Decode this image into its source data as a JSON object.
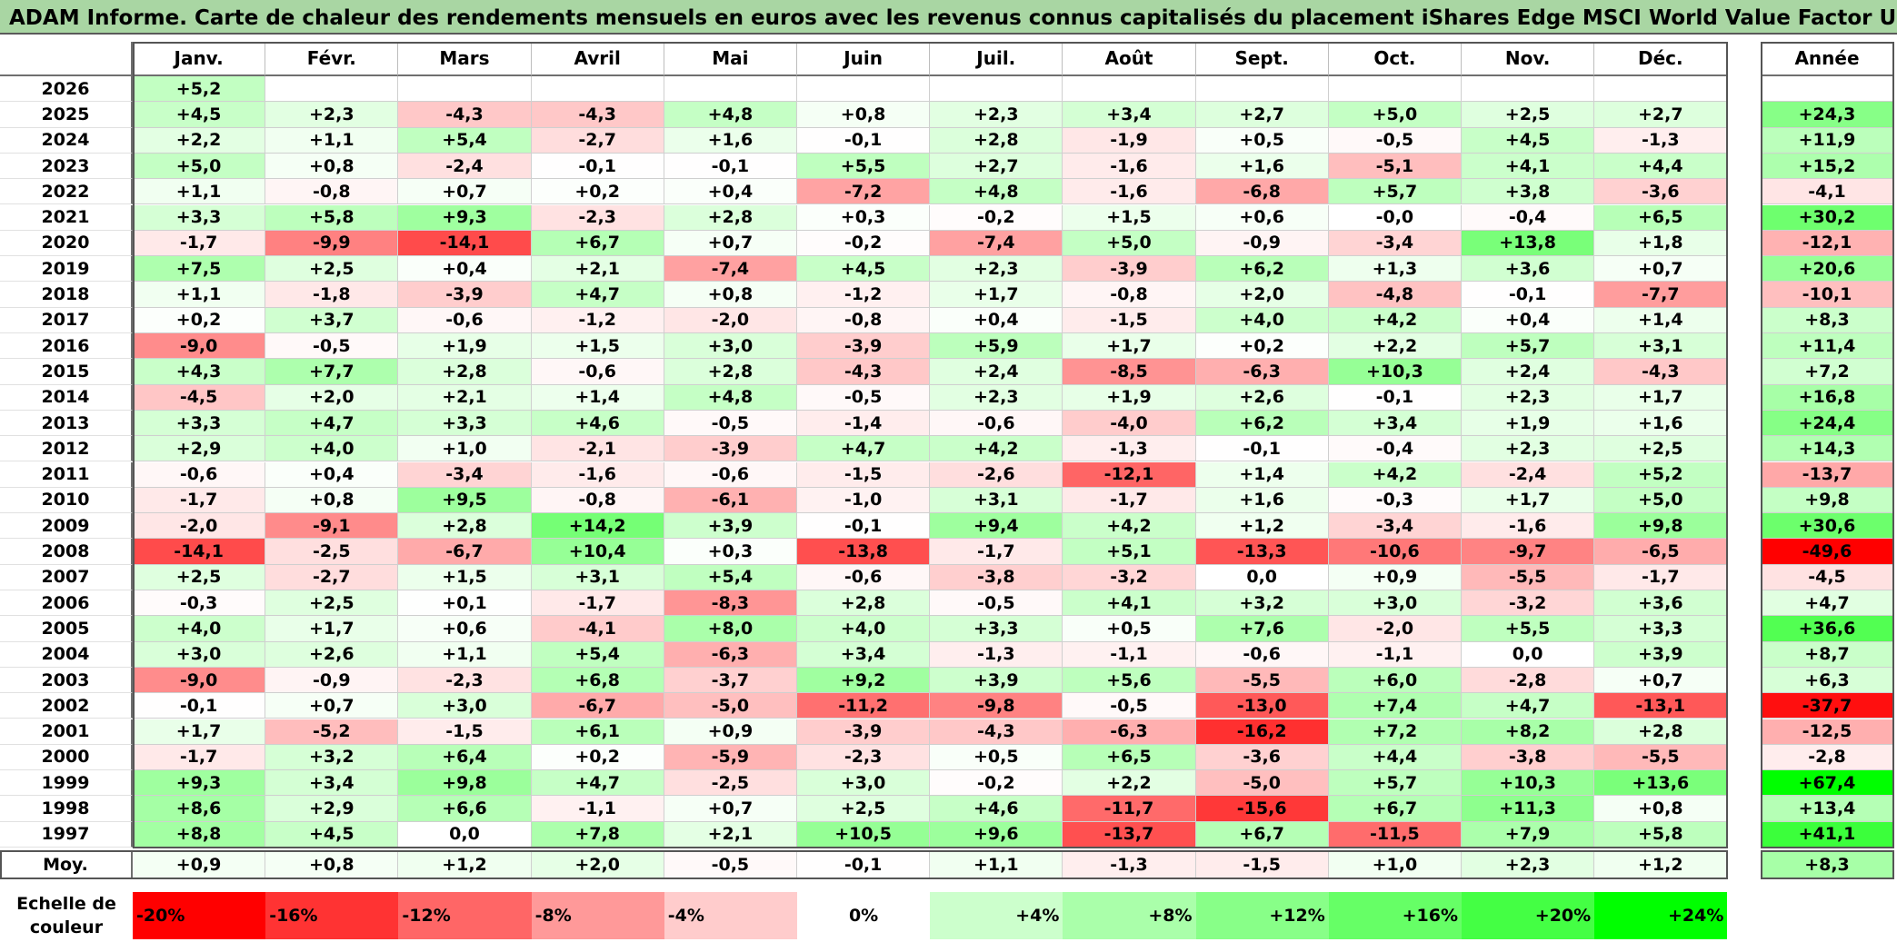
{
  "title": "ADAM Informe. Carte de chaleur des rendements mensuels en euros avec les revenus connus capitalisés du placement iShares Edge MSCI World Value Factor UCITS ETF USD",
  "chart_data": {
    "type": "heatmap",
    "title": "ADAM Informe. Carte de chaleur des rendements mensuels en euros avec les revenus connus capitalisés du placement iShares Edge MSCI World Value Factor UCITS ETF USD",
    "months": [
      "Janv.",
      "Févr.",
      "Mars",
      "Avril",
      "Mai",
      "Juin",
      "Juil.",
      "Août",
      "Sept.",
      "Oct.",
      "Nov.",
      "Déc."
    ],
    "year_header": "Année",
    "rows": [
      {
        "year": "2026",
        "values": [
          "+5,2",
          "",
          "",
          "",
          "",
          "",
          "",
          "",
          "",
          "",
          "",
          ""
        ],
        "annual": ""
      },
      {
        "year": "2025",
        "values": [
          "+4,5",
          "+2,3",
          "-4,3",
          "-4,3",
          "+4,8",
          "+0,8",
          "+2,3",
          "+3,4",
          "+2,7",
          "+5,0",
          "+2,5",
          "+2,7"
        ],
        "annual": "+24,3"
      },
      {
        "year": "2024",
        "values": [
          "+2,2",
          "+1,1",
          "+5,4",
          "-2,7",
          "+1,6",
          "-0,1",
          "+2,8",
          "-1,9",
          "+0,5",
          "-0,5",
          "+4,5",
          "-1,3"
        ],
        "annual": "+11,9"
      },
      {
        "year": "2023",
        "values": [
          "+5,0",
          "+0,8",
          "-2,4",
          "-0,1",
          "-0,1",
          "+5,5",
          "+2,7",
          "-1,6",
          "+1,6",
          "-5,1",
          "+4,1",
          "+4,4"
        ],
        "annual": "+15,2"
      },
      {
        "year": "2022",
        "values": [
          "+1,1",
          "-0,8",
          "+0,7",
          "+0,2",
          "+0,4",
          "-7,2",
          "+4,8",
          "-1,6",
          "-6,8",
          "+5,7",
          "+3,8",
          "-3,6"
        ],
        "annual": "-4,1"
      },
      {
        "year": "2021",
        "values": [
          "+3,3",
          "+5,8",
          "+9,3",
          "-2,3",
          "+2,8",
          "+0,3",
          "-0,2",
          "+1,5",
          "+0,6",
          "-0,0",
          "-0,4",
          "+6,5"
        ],
        "annual": "+30,2"
      },
      {
        "year": "2020",
        "values": [
          "-1,7",
          "-9,9",
          "-14,1",
          "+6,7",
          "+0,7",
          "-0,2",
          "-7,4",
          "+5,0",
          "-0,9",
          "-3,4",
          "+13,8",
          "+1,8"
        ],
        "annual": "-12,1"
      },
      {
        "year": "2019",
        "values": [
          "+7,5",
          "+2,5",
          "+0,4",
          "+2,1",
          "-7,4",
          "+4,5",
          "+2,3",
          "-3,9",
          "+6,2",
          "+1,3",
          "+3,6",
          "+0,7"
        ],
        "annual": "+20,6"
      },
      {
        "year": "2018",
        "values": [
          "+1,1",
          "-1,8",
          "-3,9",
          "+4,7",
          "+0,8",
          "-1,2",
          "+1,7",
          "-0,8",
          "+2,0",
          "-4,8",
          "-0,1",
          "-7,7"
        ],
        "annual": "-10,1"
      },
      {
        "year": "2017",
        "values": [
          "+0,2",
          "+3,7",
          "-0,6",
          "-1,2",
          "-2,0",
          "-0,8",
          "+0,4",
          "-1,5",
          "+4,0",
          "+4,2",
          "+0,4",
          "+1,4"
        ],
        "annual": "+8,3"
      },
      {
        "year": "2016",
        "values": [
          "-9,0",
          "-0,5",
          "+1,9",
          "+1,5",
          "+3,0",
          "-3,9",
          "+5,9",
          "+1,7",
          "+0,2",
          "+2,2",
          "+5,7",
          "+3,1"
        ],
        "annual": "+11,4"
      },
      {
        "year": "2015",
        "values": [
          "+4,3",
          "+7,7",
          "+2,8",
          "-0,6",
          "+2,8",
          "-4,3",
          "+2,4",
          "-8,5",
          "-6,3",
          "+10,3",
          "+2,4",
          "-4,3"
        ],
        "annual": "+7,2"
      },
      {
        "year": "2014",
        "values": [
          "-4,5",
          "+2,0",
          "+2,1",
          "+1,4",
          "+4,8",
          "-0,5",
          "+2,3",
          "+1,9",
          "+2,6",
          "-0,1",
          "+2,3",
          "+1,7"
        ],
        "annual": "+16,8"
      },
      {
        "year": "2013",
        "values": [
          "+3,3",
          "+4,7",
          "+3,3",
          "+4,6",
          "-0,5",
          "-1,4",
          "-0,6",
          "-4,0",
          "+6,2",
          "+3,4",
          "+1,9",
          "+1,6"
        ],
        "annual": "+24,4"
      },
      {
        "year": "2012",
        "values": [
          "+2,9",
          "+4,0",
          "+1,0",
          "-2,1",
          "-3,9",
          "+4,7",
          "+4,2",
          "-1,3",
          "-0,1",
          "-0,4",
          "+2,3",
          "+2,5"
        ],
        "annual": "+14,3"
      },
      {
        "year": "2011",
        "values": [
          "-0,6",
          "+0,4",
          "-3,4",
          "-1,6",
          "-0,6",
          "-1,5",
          "-2,6",
          "-12,1",
          "+1,4",
          "+4,2",
          "-2,4",
          "+5,2"
        ],
        "annual": "-13,7"
      },
      {
        "year": "2010",
        "values": [
          "-1,7",
          "+0,8",
          "+9,5",
          "-0,8",
          "-6,1",
          "-1,0",
          "+3,1",
          "-1,7",
          "+1,6",
          "-0,3",
          "+1,7",
          "+5,0"
        ],
        "annual": "+9,8"
      },
      {
        "year": "2009",
        "values": [
          "-2,0",
          "-9,1",
          "+2,8",
          "+14,2",
          "+3,9",
          "-0,1",
          "+9,4",
          "+4,2",
          "+1,2",
          "-3,4",
          "-1,6",
          "+9,8"
        ],
        "annual": "+30,6"
      },
      {
        "year": "2008",
        "values": [
          "-14,1",
          "-2,5",
          "-6,7",
          "+10,4",
          "+0,3",
          "-13,8",
          "-1,7",
          "+5,1",
          "-13,3",
          "-10,6",
          "-9,7",
          "-6,5"
        ],
        "annual": "-49,6"
      },
      {
        "year": "2007",
        "values": [
          "+2,5",
          "-2,7",
          "+1,5",
          "+3,1",
          "+5,4",
          "-0,6",
          "-3,8",
          "-3,2",
          "0,0",
          "+0,9",
          "-5,5",
          "-1,7"
        ],
        "annual": "-4,5"
      },
      {
        "year": "2006",
        "values": [
          "-0,3",
          "+2,5",
          "+0,1",
          "-1,7",
          "-8,3",
          "+2,8",
          "-0,5",
          "+4,1",
          "+3,2",
          "+3,0",
          "-3,2",
          "+3,6"
        ],
        "annual": "+4,7"
      },
      {
        "year": "2005",
        "values": [
          "+4,0",
          "+1,7",
          "+0,6",
          "-4,1",
          "+8,0",
          "+4,0",
          "+3,3",
          "+0,5",
          "+7,6",
          "-2,0",
          "+5,5",
          "+3,3"
        ],
        "annual": "+36,6"
      },
      {
        "year": "2004",
        "values": [
          "+3,0",
          "+2,6",
          "+1,1",
          "+5,4",
          "-6,3",
          "+3,4",
          "-1,3",
          "-1,1",
          "-0,6",
          "-1,1",
          "0,0",
          "+3,9"
        ],
        "annual": "+8,7"
      },
      {
        "year": "2003",
        "values": [
          "-9,0",
          "-0,9",
          "-2,3",
          "+6,8",
          "-3,7",
          "+9,2",
          "+3,9",
          "+5,6",
          "-5,5",
          "+6,0",
          "-2,8",
          "+0,7"
        ],
        "annual": "+6,3"
      },
      {
        "year": "2002",
        "values": [
          "-0,1",
          "+0,7",
          "+3,0",
          "-6,7",
          "-5,0",
          "-11,2",
          "-9,8",
          "-0,5",
          "-13,0",
          "+7,4",
          "+4,7",
          "-13,1"
        ],
        "annual": "-37,7"
      },
      {
        "year": "2001",
        "values": [
          "+1,7",
          "-5,2",
          "-1,5",
          "+6,1",
          "+0,9",
          "-3,9",
          "-4,3",
          "-6,3",
          "-16,2",
          "+7,2",
          "+8,2",
          "+2,8"
        ],
        "annual": "-12,5"
      },
      {
        "year": "2000",
        "values": [
          "-1,7",
          "+3,2",
          "+6,4",
          "+0,2",
          "-5,9",
          "-2,3",
          "+0,5",
          "+6,5",
          "-3,6",
          "+4,4",
          "-3,8",
          "-5,5"
        ],
        "annual": "-2,8"
      },
      {
        "year": "1999",
        "values": [
          "+9,3",
          "+3,4",
          "+9,8",
          "+4,7",
          "-2,5",
          "+3,0",
          "-0,2",
          "+2,2",
          "-5,0",
          "+5,7",
          "+10,3",
          "+13,6"
        ],
        "annual": "+67,4"
      },
      {
        "year": "1998",
        "values": [
          "+8,6",
          "+2,9",
          "+6,6",
          "-1,1",
          "+0,7",
          "+2,5",
          "+4,6",
          "-11,7",
          "-15,6",
          "+6,7",
          "+11,3",
          "+0,8"
        ],
        "annual": "+13,4"
      },
      {
        "year": "1997",
        "values": [
          "+8,8",
          "+4,5",
          "0,0",
          "+7,8",
          "+2,1",
          "+10,5",
          "+9,6",
          "-13,7",
          "+6,7",
          "-11,5",
          "+7,9",
          "+5,8"
        ],
        "annual": "+41,1"
      }
    ],
    "average": {
      "label": "Moy.",
      "values": [
        "+0,9",
        "+0,8",
        "+1,2",
        "+2,0",
        "-0,5",
        "-0,1",
        "+1,1",
        "-1,3",
        "-1,5",
        "+1,0",
        "+2,3",
        "+1,2"
      ],
      "annual": "+8,3"
    },
    "color_scale": {
      "label": "Echelle de couleur",
      "stops": [
        {
          "label": "-20%",
          "value": -20,
          "color": "#ff0000"
        },
        {
          "label": "-16%",
          "value": -16,
          "color": "#ff3333"
        },
        {
          "label": "-12%",
          "value": -12,
          "color": "#ff6666"
        },
        {
          "label": "-8%",
          "value": -8,
          "color": "#ff9999"
        },
        {
          "label": "-4%",
          "value": -4,
          "color": "#ffcccc"
        },
        {
          "label": "0%",
          "value": 0,
          "color": "#ffffff"
        },
        {
          "label": "+4%",
          "value": 4,
          "color": "#ccffcc"
        },
        {
          "label": "+8%",
          "value": 8,
          "color": "#aaffaa"
        },
        {
          "label": "+12%",
          "value": 12,
          "color": "#88ff88"
        },
        {
          "label": "+16%",
          "value": 16,
          "color": "#66ff66"
        },
        {
          "label": "+20%",
          "value": 20,
          "color": "#44ff44"
        },
        {
          "label": "+24%",
          "value": 24,
          "color": "#00ff00"
        }
      ]
    }
  }
}
